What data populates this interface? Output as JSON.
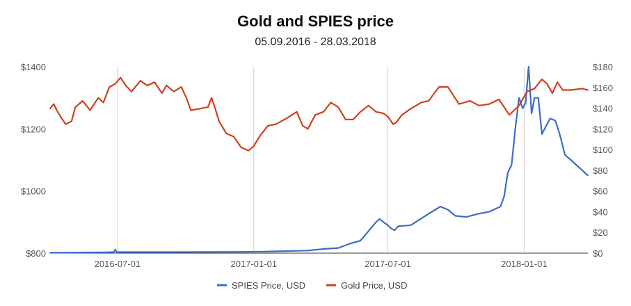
{
  "chart_data": {
    "type": "line",
    "title": "Gold and SPIES price",
    "subtitle": "05.09.2016 - 28.03.2018",
    "x_ticks": [
      "2016-07-01",
      "2017-01-01",
      "2017-07-01",
      "2018-01-01"
    ],
    "x_range": [
      "2016-04-01",
      "2018-03-28"
    ],
    "y_left": {
      "ticks": [
        "$800",
        "$1000",
        "$1200",
        "$1400"
      ],
      "range": [
        800,
        1400
      ],
      "series": "Gold Price, USD"
    },
    "y_right": {
      "ticks": [
        "$0",
        "$20",
        "$40",
        "$60",
        "$80",
        "$100",
        "$120",
        "$140",
        "$160",
        "$180"
      ],
      "range": [
        0,
        180
      ],
      "series": "SPIES Price, USD"
    },
    "grid": "vertical",
    "legend_position": "bottom",
    "series": [
      {
        "name": "SPIES Price, USD",
        "color": "#3d6cc7",
        "axis": "right",
        "points": [
          [
            "2016-04-01",
            0.5
          ],
          [
            "2016-05-15",
            0.6
          ],
          [
            "2016-06-15",
            0.8
          ],
          [
            "2016-06-26",
            1.0
          ],
          [
            "2016-06-28",
            3.5
          ],
          [
            "2016-06-30",
            1.0
          ],
          [
            "2016-09-01",
            1.0
          ],
          [
            "2016-12-15",
            1.2
          ],
          [
            "2017-01-15",
            1.5
          ],
          [
            "2017-02-15",
            2.0
          ],
          [
            "2017-03-15",
            2.5
          ],
          [
            "2017-04-05",
            4.0
          ],
          [
            "2017-04-25",
            5.0
          ],
          [
            "2017-05-10",
            9.0
          ],
          [
            "2017-05-25",
            12.0
          ],
          [
            "2017-06-01",
            18.0
          ],
          [
            "2017-06-08",
            24.0
          ],
          [
            "2017-06-15",
            30.0
          ],
          [
            "2017-06-20",
            33.0
          ],
          [
            "2017-06-25",
            30.0
          ],
          [
            "2017-07-01",
            27.0
          ],
          [
            "2017-07-05",
            24.0
          ],
          [
            "2017-07-10",
            22.0
          ],
          [
            "2017-07-15",
            26.0
          ],
          [
            "2017-08-01",
            27.0
          ],
          [
            "2017-08-25",
            38.0
          ],
          [
            "2017-09-10",
            45.0
          ],
          [
            "2017-09-20",
            42.0
          ],
          [
            "2017-09-30",
            36.0
          ],
          [
            "2017-10-15",
            35.0
          ],
          [
            "2017-10-31",
            38.0
          ],
          [
            "2017-11-15",
            40.0
          ],
          [
            "2017-11-30",
            45.0
          ],
          [
            "2017-12-05",
            55.0
          ],
          [
            "2017-12-10",
            78.0
          ],
          [
            "2017-12-15",
            85.0
          ],
          [
            "2017-12-20",
            120.0
          ],
          [
            "2017-12-25",
            150.0
          ],
          [
            "2017-12-30",
            140.0
          ],
          [
            "2018-01-03",
            145.0
          ],
          [
            "2018-01-07",
            180.0
          ],
          [
            "2018-01-11",
            135.0
          ],
          [
            "2018-01-15",
            150.0
          ],
          [
            "2018-01-20",
            150.0
          ],
          [
            "2018-01-25",
            115.0
          ],
          [
            "2018-02-05",
            130.0
          ],
          [
            "2018-02-12",
            128.0
          ],
          [
            "2018-02-18",
            115.0
          ],
          [
            "2018-02-25",
            95.0
          ],
          [
            "2018-03-05",
            90.0
          ],
          [
            "2018-03-28",
            75.0
          ]
        ]
      },
      {
        "name": "Gold Price, USD",
        "color": "#d0401f",
        "axis": "left",
        "points": [
          [
            "2016-04-01",
            1265
          ],
          [
            "2016-04-06",
            1280
          ],
          [
            "2016-04-10",
            1260
          ],
          [
            "2016-04-15",
            1240
          ],
          [
            "2016-04-22",
            1215
          ],
          [
            "2016-04-30",
            1225
          ],
          [
            "2016-05-05",
            1270
          ],
          [
            "2016-05-15",
            1290
          ],
          [
            "2016-05-25",
            1260
          ],
          [
            "2016-06-05",
            1300
          ],
          [
            "2016-06-12",
            1285
          ],
          [
            "2016-06-20",
            1335
          ],
          [
            "2016-06-28",
            1345
          ],
          [
            "2016-07-05",
            1365
          ],
          [
            "2016-07-12",
            1340
          ],
          [
            "2016-07-20",
            1320
          ],
          [
            "2016-08-01",
            1355
          ],
          [
            "2016-08-10",
            1340
          ],
          [
            "2016-08-20",
            1350
          ],
          [
            "2016-08-30",
            1315
          ],
          [
            "2016-09-05",
            1340
          ],
          [
            "2016-09-15",
            1320
          ],
          [
            "2016-09-25",
            1335
          ],
          [
            "2016-10-02",
            1300
          ],
          [
            "2016-10-08",
            1260
          ],
          [
            "2016-10-20",
            1265
          ],
          [
            "2016-10-31",
            1270
          ],
          [
            "2016-11-05",
            1300
          ],
          [
            "2016-11-10",
            1265
          ],
          [
            "2016-11-15",
            1225
          ],
          [
            "2016-11-25",
            1185
          ],
          [
            "2016-12-05",
            1175
          ],
          [
            "2016-12-15",
            1140
          ],
          [
            "2016-12-25",
            1130
          ],
          [
            "2017-01-01",
            1145
          ],
          [
            "2017-01-10",
            1180
          ],
          [
            "2017-01-20",
            1210
          ],
          [
            "2017-01-31",
            1215
          ],
          [
            "2017-02-15",
            1235
          ],
          [
            "2017-02-28",
            1255
          ],
          [
            "2017-03-08",
            1210
          ],
          [
            "2017-03-15",
            1200
          ],
          [
            "2017-03-25",
            1245
          ],
          [
            "2017-04-05",
            1255
          ],
          [
            "2017-04-15",
            1285
          ],
          [
            "2017-04-25",
            1270
          ],
          [
            "2017-05-05",
            1230
          ],
          [
            "2017-05-15",
            1230
          ],
          [
            "2017-05-25",
            1255
          ],
          [
            "2017-06-05",
            1275
          ],
          [
            "2017-06-15",
            1255
          ],
          [
            "2017-06-25",
            1250
          ],
          [
            "2017-07-01",
            1240
          ],
          [
            "2017-07-08",
            1215
          ],
          [
            "2017-07-12",
            1220
          ],
          [
            "2017-07-20",
            1245
          ],
          [
            "2017-08-01",
            1265
          ],
          [
            "2017-08-15",
            1285
          ],
          [
            "2017-08-25",
            1290
          ],
          [
            "2017-09-08",
            1335
          ],
          [
            "2017-09-20",
            1335
          ],
          [
            "2017-10-05",
            1280
          ],
          [
            "2017-10-20",
            1290
          ],
          [
            "2017-11-01",
            1275
          ],
          [
            "2017-11-15",
            1280
          ],
          [
            "2017-11-28",
            1295
          ],
          [
            "2017-12-12",
            1245
          ],
          [
            "2017-12-25",
            1275
          ],
          [
            "2018-01-05",
            1320
          ],
          [
            "2018-01-15",
            1330
          ],
          [
            "2018-01-25",
            1360
          ],
          [
            "2018-02-01",
            1345
          ],
          [
            "2018-02-08",
            1315
          ],
          [
            "2018-02-15",
            1350
          ],
          [
            "2018-02-22",
            1325
          ],
          [
            "2018-03-05",
            1325
          ],
          [
            "2018-03-20",
            1330
          ],
          [
            "2018-03-28",
            1325
          ]
        ]
      }
    ]
  }
}
